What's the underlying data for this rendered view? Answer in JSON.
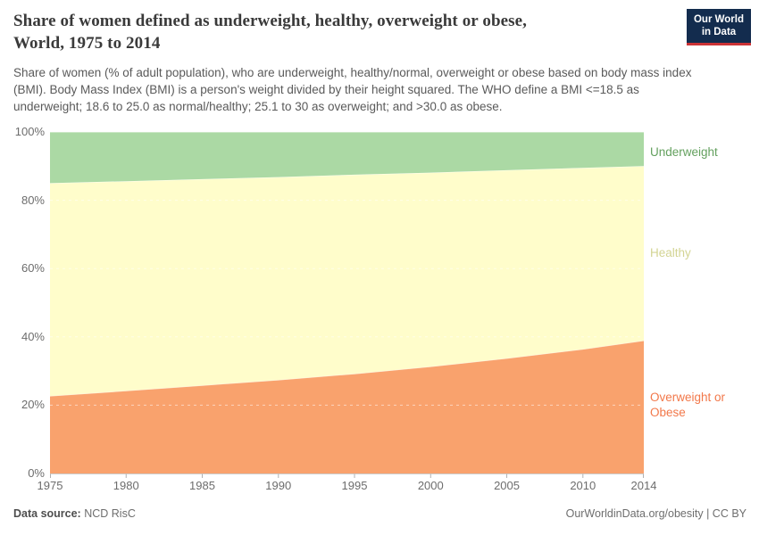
{
  "header": {
    "title_line1": "Share of women defined as underweight, healthy, overweight or obese,",
    "title_line2": "World, 1975 to 2014",
    "subtitle": "Share of women (% of adult population), who are underweight, healthy/normal, overweight or obese based on body mass index (BMI). Body Mass Index (BMI) is a person's weight divided by their height squared. The WHO define a BMI <=18.5 as underweight; 18.6 to 25.0 as normal/healthy; 25.1 to 30 as overweight; and >30.0 as obese.",
    "logo": {
      "line1": "Our World",
      "line2": "in Data",
      "bg_color": "#132c4e",
      "bar_color": "#cb3336"
    }
  },
  "chart_data": {
    "type": "area",
    "stacked": true,
    "x": [
      1975,
      1980,
      1985,
      1990,
      1995,
      2000,
      2005,
      2010,
      2014
    ],
    "xlim": [
      1975,
      2014
    ],
    "ylim": [
      0,
      100
    ],
    "x_ticks": [
      1975,
      1980,
      1985,
      1990,
      1995,
      2000,
      2005,
      2010,
      2014
    ],
    "y_ticks": [
      0,
      20,
      40,
      60,
      80,
      100
    ],
    "y_tick_suffix": "%",
    "gridlines": [
      20,
      40,
      60,
      80
    ],
    "legend_position": "right-of-plot",
    "series": [
      {
        "name": "Overweight or Obese",
        "values": [
          22.7,
          24.2,
          25.8,
          27.4,
          29.2,
          31.3,
          33.7,
          36.4,
          38.9
        ],
        "fill": "#f9a26d",
        "label_color": "#f2784a"
      },
      {
        "name": "Healthy",
        "values": [
          62.3,
          61.4,
          60.4,
          59.4,
          58.3,
          56.8,
          55.1,
          53.1,
          51.1
        ],
        "fill": "#fffdcb",
        "label_color": "#d3d493"
      },
      {
        "name": "Underweight",
        "values": [
          15.0,
          14.4,
          13.8,
          13.2,
          12.5,
          11.9,
          11.2,
          10.5,
          10.0
        ],
        "fill": "#abd9a4",
        "label_color": "#63a05e"
      }
    ],
    "axis_color": "#cccccc",
    "tick_color": "#b0b0b0"
  },
  "footer": {
    "source_label": "Data source:",
    "source_value": "NCD RisC",
    "credit": "OurWorldinData.org/obesity | CC BY"
  }
}
